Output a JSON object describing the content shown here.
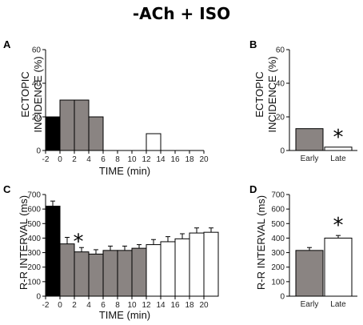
{
  "figure_title": "-ACh + ISO",
  "chart_data": [
    {
      "panel": "A",
      "type": "bar",
      "ylabel": [
        "ECTOPIC",
        "INCIDENCE (%)"
      ],
      "xlabel": "TIME (min)",
      "x_tick_labels": [
        "-2",
        "0",
        "2",
        "4",
        "6",
        "8",
        "10",
        "12",
        "14",
        "16",
        "18",
        "20"
      ],
      "y_ticks": [
        "0",
        "20",
        "40",
        "60"
      ],
      "ylim": [
        0,
        60
      ],
      "bin_starts": [
        -2,
        0,
        2,
        4,
        6,
        8,
        10,
        12,
        14,
        16,
        18
      ],
      "values": [
        20,
        30,
        30,
        20,
        0,
        0,
        0,
        10,
        0,
        0,
        0
      ],
      "fill_colors": [
        "#000000",
        "#8a8482",
        "#8a8482",
        "#8a8482",
        "#8a8482",
        "#8a8482",
        "#ffffff",
        "#ffffff",
        "#ffffff",
        "#ffffff",
        "#ffffff"
      ]
    },
    {
      "panel": "B",
      "type": "bar",
      "ylabel": [
        "ECTOPIC",
        "INCIDENCE (%)"
      ],
      "y_ticks": [
        "0",
        "20",
        "40",
        "60"
      ],
      "ylim": [
        0,
        60
      ],
      "categories": [
        "Early",
        "Late"
      ],
      "values": [
        13,
        2
      ],
      "fill_colors": [
        "#8a8482",
        "#ffffff"
      ],
      "significance": "*"
    },
    {
      "panel": "C",
      "type": "bar",
      "ylabel": "R-R INTERVAL (ms)",
      "xlabel": "TIME (min)",
      "x_tick_labels": [
        "-2",
        "0",
        "2",
        "4",
        "6",
        "8",
        "10",
        "12",
        "14",
        "16",
        "18",
        "20"
      ],
      "y_ticks": [
        "0",
        "100",
        "200",
        "300",
        "400",
        "500",
        "600",
        "700"
      ],
      "ylim": [
        0,
        700
      ],
      "bin_starts": [
        -2,
        0,
        2,
        4,
        6,
        8,
        10,
        12,
        14,
        16,
        18,
        20
      ],
      "values": [
        620,
        360,
        305,
        290,
        315,
        315,
        330,
        355,
        375,
        395,
        435,
        440
      ],
      "errors": [
        35,
        45,
        30,
        30,
        30,
        30,
        25,
        35,
        35,
        35,
        35,
        30
      ],
      "fill_colors": [
        "#000000",
        "#8a8482",
        "#8a8482",
        "#8a8482",
        "#8a8482",
        "#8a8482",
        "#8a8482",
        "#ffffff",
        "#ffffff",
        "#ffffff",
        "#ffffff",
        "#ffffff"
      ],
      "significance": "*"
    },
    {
      "panel": "D",
      "type": "bar",
      "ylabel": "R-R INTERVAL (ms)",
      "y_ticks": [
        "0",
        "100",
        "200",
        "300",
        "400",
        "500",
        "600",
        "700"
      ],
      "ylim": [
        0,
        700
      ],
      "categories": [
        "Early",
        "Late"
      ],
      "values": [
        315,
        400
      ],
      "errors": [
        20,
        18
      ],
      "fill_colors": [
        "#8a8482",
        "#ffffff"
      ],
      "significance": "*"
    }
  ]
}
